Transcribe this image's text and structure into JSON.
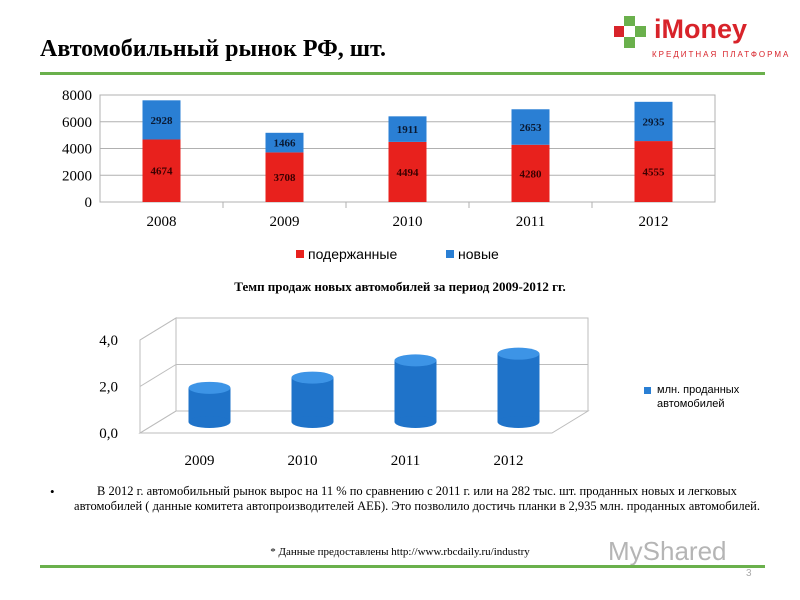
{
  "brand": {
    "name": "iMoney",
    "tagline": "КРЕДИТНАЯ ПЛАТФОРМА",
    "green": "#6ab04c",
    "red": "#d8232a"
  },
  "page_title": "Автомобильный рынок РФ, шт.",
  "chart_data": [
    {
      "type": "bar",
      "stacked": true,
      "categories": [
        "2008",
        "2009",
        "2010",
        "2011",
        "2012"
      ],
      "series": [
        {
          "name": "подержанные",
          "values": [
            4674,
            3708,
            4494,
            4280,
            4555
          ],
          "color": "#e8211d"
        },
        {
          "name": "новые",
          "values": [
            2928,
            1466,
            1911,
            2653,
            2935
          ],
          "color": "#2a7fd4"
        }
      ],
      "yticks": [
        "0",
        "2000",
        "4000",
        "6000",
        "8000"
      ],
      "ylim": [
        0,
        8000
      ],
      "grid": true,
      "legend": "bottom"
    },
    {
      "type": "bar",
      "style": "3d-cylinder",
      "title": "Темп продаж новых автомобилей за период 2009-2012 гг.",
      "categories": [
        "2009",
        "2010",
        "2011",
        "2012"
      ],
      "series": [
        {
          "name": "млн. проданных автомобилей",
          "values": [
            1.47,
            1.91,
            2.65,
            2.94
          ],
          "color": "#2a7fd4"
        }
      ],
      "yticks": [
        "0,0",
        "2,0",
        "4,0"
      ],
      "ylim": [
        0,
        4
      ],
      "legend": "right"
    }
  ],
  "note": "В 2012 г. автомобильный рынок вырос на 11 % по сравнению с 2011 г. или на 282 тыс. шт. проданных новых и легковых автомобилей ( данные комитета автопроизводителей АЕБ). Это позволило достичь планки в 2,935 млн. проданных автомобилей.",
  "note_bullet": "•",
  "source": "* Данные предоставлены http://www.rbcdaily.ru/industry",
  "watermark": "MyShared",
  "page_number": "3"
}
